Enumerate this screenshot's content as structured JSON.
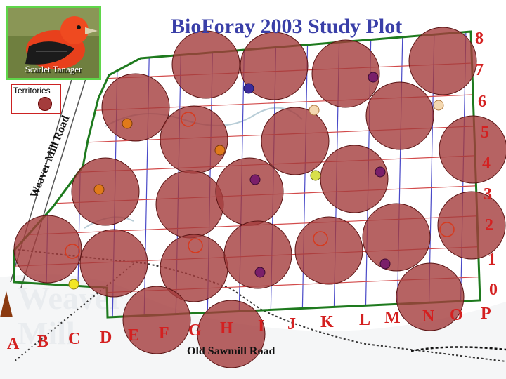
{
  "title": "BioForay 2003 Study Plot",
  "bird": {
    "caption": "Scarlet Tanager"
  },
  "legend": {
    "title": "Territories"
  },
  "roads": {
    "west": "Weaver Mill Road",
    "south": "Old Sawmill Road"
  },
  "background_text": [
    "Weaver",
    "Mill"
  ],
  "grid": {
    "columns": [
      "A",
      "B",
      "C",
      "D",
      "E",
      "F",
      "G",
      "H",
      "I",
      "J",
      "K",
      "L",
      "M",
      "N",
      "O",
      "P"
    ],
    "rows": [
      "8",
      "7",
      "6",
      "5",
      "4",
      "3",
      "2",
      "1",
      "0"
    ]
  },
  "colors": {
    "territory_fill": "#a43c3c",
    "boundary": "#1e7a1e",
    "grid_horizontal": "#d24a4a",
    "grid_vertical": "#4a4ac8",
    "labels": "#d42020",
    "title": "#3a3fa8"
  },
  "territory_count": 27
}
